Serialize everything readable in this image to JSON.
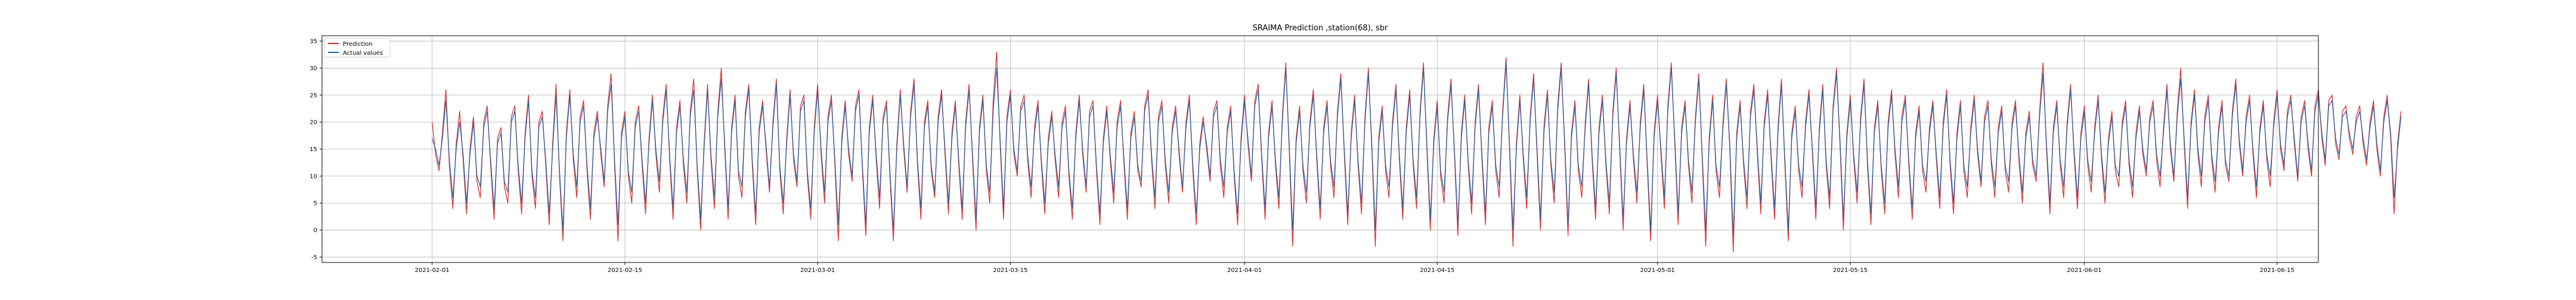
{
  "chart_data": {
    "type": "line",
    "title": "SRAIMA Prediction ,station(68), sbr",
    "xlabel": "",
    "ylabel": "",
    "xlim": [
      "2021-01-24",
      "2021-06-18"
    ],
    "ylim": [
      -6,
      36
    ],
    "x_ticks": [
      "2021-02-01",
      "2021-02-15",
      "2021-03-01",
      "2021-03-15",
      "2021-04-01",
      "2021-04-15",
      "2021-05-01",
      "2021-05-15",
      "2021-06-01",
      "2021-06-15"
    ],
    "y_ticks": [
      -5,
      0,
      5,
      10,
      15,
      20,
      25,
      30,
      35
    ],
    "grid": true,
    "legend_position": "top-left",
    "x_start": "2021-02-01T00:00",
    "x_step_hours": 6,
    "series": [
      {
        "name": "Prediction",
        "color": "#d62728",
        "values": [
          20,
          14,
          11,
          18,
          26,
          12,
          4,
          16,
          22,
          13,
          3,
          15,
          21,
          9,
          6,
          20,
          23,
          12,
          2,
          17,
          19,
          8,
          5,
          21,
          23,
          11,
          3,
          18,
          25,
          10,
          4,
          20,
          22,
          12,
          1,
          16,
          27,
          10,
          -2,
          18,
          26,
          13,
          6,
          21,
          24,
          11,
          2,
          18,
          22,
          14,
          8,
          23,
          29,
          12,
          -2,
          18,
          22,
          10,
          5,
          20,
          23,
          12,
          3,
          17,
          25,
          14,
          7,
          21,
          27,
          13,
          2,
          19,
          24,
          12,
          5,
          22,
          28,
          11,
          0,
          16,
          27,
          13,
          4,
          22,
          30,
          15,
          2,
          19,
          25,
          10,
          6,
          22,
          27,
          12,
          1,
          19,
          24,
          15,
          7,
          20,
          28,
          11,
          3,
          17,
          26,
          13,
          8,
          23,
          25,
          10,
          2,
          19,
          27,
          14,
          5,
          21,
          25,
          12,
          -2,
          17,
          24,
          14,
          9,
          23,
          26,
          11,
          -1,
          19,
          25,
          13,
          4,
          21,
          24,
          10,
          -2,
          16,
          26,
          15,
          7,
          22,
          28,
          12,
          2,
          20,
          24,
          11,
          6,
          21,
          26,
          14,
          3,
          18,
          24,
          12,
          2,
          20,
          27,
          13,
          0,
          19,
          25,
          11,
          5,
          24,
          33,
          16,
          2,
          21,
          26,
          14,
          10,
          23,
          25,
          13,
          6,
          19,
          24,
          12,
          3,
          17,
          22,
          13,
          6,
          20,
          23,
          10,
          2,
          18,
          25,
          14,
          7,
          22,
          24,
          11,
          1,
          17,
          23,
          13,
          5,
          20,
          24,
          12,
          2,
          18,
          22,
          11,
          8,
          23,
          26,
          13,
          4,
          21,
          24,
          12,
          5,
          19,
          23,
          14,
          7,
          20,
          25,
          11,
          1,
          16,
          21,
          15,
          9,
          22,
          24,
          12,
          6,
          19,
          23,
          10,
          1,
          17,
          25,
          16,
          9,
          24,
          27,
          13,
          2,
          18,
          24,
          12,
          4,
          21,
          31,
          15,
          -3,
          17,
          23,
          11,
          5,
          20,
          26,
          13,
          2,
          19,
          24,
          12,
          6,
          22,
          29,
          14,
          1,
          18,
          25,
          12,
          3,
          21,
          30,
          15,
          -3,
          17,
          23,
          11,
          6,
          20,
          27,
          13,
          2,
          19,
          26,
          12,
          4,
          22,
          31,
          15,
          0,
          17,
          24,
          10,
          5,
          21,
          28,
          14,
          -1,
          18,
          25,
          12,
          3,
          20,
          27,
          13,
          1,
          19,
          24,
          11,
          6,
          22,
          32,
          15,
          -3,
          16,
          25,
          13,
          4,
          21,
          29,
          14,
          0,
          19,
          26,
          12,
          5,
          23,
          31,
          16,
          -1,
          18,
          24,
          11,
          6,
          20,
          28,
          13,
          2,
          19,
          25,
          12,
          3,
          22,
          30,
          15,
          0,
          17,
          24,
          13,
          5,
          20,
          27,
          12,
          -2,
          18,
          25,
          14,
          4,
          23,
          31,
          16,
          1,
          19,
          24,
          12,
          5,
          21,
          29,
          13,
          -3,
          17,
          25,
          11,
          6,
          20,
          28,
          15,
          -4,
          18,
          24,
          12,
          4,
          22,
          27,
          14,
          3,
          20,
          26,
          13,
          2,
          19,
          28,
          12,
          -2,
          18,
          23,
          11,
          6,
          20,
          26,
          14,
          2,
          19,
          27,
          12,
          4,
          23,
          30,
          16,
          0,
          18,
          25,
          13,
          5,
          21,
          28,
          12,
          1,
          19,
          24,
          11,
          3,
          20,
          26,
          14,
          6,
          21,
          25,
          12,
          2,
          18,
          23,
          11,
          7,
          19,
          24,
          13,
          4,
          20,
          26,
          12,
          3,
          18,
          24,
          11,
          6,
          19,
          25,
          14,
          8,
          21,
          24,
          12,
          6,
          19,
          23,
          11,
          7,
          20,
          24,
          13,
          5,
          18,
          22,
          12,
          9,
          22,
          31,
          15,
          3,
          19,
          24,
          12,
          6,
          20,
          27,
          14,
          4,
          18,
          23,
          12,
          7,
          19,
          25,
          13,
          5,
          17,
          22,
          11,
          8,
          20,
          24,
          12,
          6,
          18,
          23,
          14,
          10,
          21,
          24,
          13,
          8,
          19,
          27,
          15,
          9,
          22,
          30,
          16,
          4,
          20,
          26,
          14,
          8,
          21,
          25,
          13,
          7,
          19,
          24,
          12,
          9,
          22,
          28,
          16,
          10,
          21,
          25,
          14,
          6,
          19,
          24,
          13,
          8,
          20,
          26,
          15,
          11,
          22,
          25,
          16,
          9,
          21,
          24,
          15,
          10,
          23,
          26,
          17,
          12,
          24,
          25,
          16,
          13,
          22,
          23,
          17,
          14,
          21,
          23,
          16,
          12,
          20,
          24,
          15,
          10,
          21,
          25,
          17,
          3,
          16,
          22
        ]
      },
      {
        "name": "Actual values",
        "color": "#1f5fa5",
        "values": [
          17,
          15,
          12,
          17,
          24,
          13,
          6,
          15,
          20,
          14,
          5,
          14,
          20,
          10,
          8,
          19,
          22,
          13,
          4,
          16,
          18,
          9,
          7,
          20,
          22,
          12,
          5,
          17,
          24,
          11,
          6,
          19,
          21,
          13,
          3,
          15,
          25,
          11,
          0,
          17,
          25,
          14,
          8,
          20,
          23,
          12,
          4,
          17,
          21,
          15,
          9,
          22,
          27,
          13,
          1,
          17,
          21,
          11,
          7,
          19,
          22,
          13,
          5,
          16,
          24,
          15,
          9,
          20,
          26,
          14,
          4,
          18,
          23,
          13,
          7,
          21,
          26,
          12,
          2,
          15,
          26,
          14,
          6,
          21,
          28,
          16,
          4,
          18,
          24,
          11,
          8,
          21,
          26,
          13,
          3,
          18,
          23,
          16,
          8,
          19,
          27,
          12,
          5,
          16,
          25,
          14,
          9,
          22,
          24,
          11,
          4,
          18,
          26,
          15,
          7,
          20,
          24,
          13,
          1,
          16,
          23,
          15,
          10,
          22,
          25,
          12,
          1,
          18,
          24,
          14,
          6,
          20,
          23,
          11,
          0,
          15,
          25,
          16,
          8,
          21,
          27,
          13,
          4,
          19,
          23,
          12,
          7,
          20,
          25,
          15,
          5,
          17,
          23,
          13,
          4,
          19,
          26,
          14,
          2,
          18,
          24,
          12,
          7,
          22,
          30,
          17,
          4,
          20,
          25,
          15,
          11,
          22,
          24,
          14,
          8,
          18,
          23,
          13,
          5,
          16,
          21,
          14,
          8,
          19,
          22,
          11,
          4,
          17,
          24,
          15,
          8,
          21,
          23,
          12,
          3,
          16,
          22,
          14,
          7,
          19,
          23,
          13,
          4,
          17,
          21,
          12,
          9,
          22,
          25,
          14,
          6,
          20,
          23,
          13,
          7,
          18,
          22,
          15,
          8,
          19,
          24,
          12,
          3,
          15,
          20,
          16,
          10,
          21,
          23,
          13,
          8,
          18,
          22,
          11,
          3,
          16,
          24,
          17,
          10,
          23,
          26,
          14,
          4,
          17,
          23,
          13,
          6,
          20,
          30,
          16,
          0,
          16,
          22,
          12,
          7,
          19,
          25,
          14,
          4,
          18,
          23,
          13,
          8,
          21,
          28,
          15,
          3,
          17,
          24,
          13,
          5,
          20,
          29,
          16,
          0,
          16,
          22,
          12,
          8,
          19,
          26,
          14,
          4,
          18,
          25,
          13,
          6,
          21,
          30,
          16,
          2,
          16,
          23,
          11,
          7,
          20,
          27,
          15,
          1,
          17,
          24,
          13,
          5,
          19,
          26,
          14,
          3,
          18,
          23,
          12,
          8,
          21,
          31,
          16,
          0,
          15,
          24,
          14,
          6,
          20,
          28,
          15,
          2,
          18,
          25,
          13,
          7,
          22,
          30,
          17,
          1,
          17,
          23,
          12,
          8,
          19,
          27,
          14,
          4,
          18,
          24,
          13,
          5,
          21,
          29,
          16,
          2,
          16,
          23,
          14,
          7,
          19,
          26,
          13,
          0,
          17,
          24,
          15,
          6,
          22,
          30,
          17,
          3,
          18,
          23,
          13,
          7,
          20,
          28,
          14,
          0,
          16,
          24,
          12,
          8,
          19,
          27,
          16,
          -1,
          17,
          23,
          13,
          6,
          21,
          26,
          15,
          5,
          19,
          25,
          14,
          4,
          18,
          27,
          13,
          0,
          17,
          22,
          12,
          8,
          19,
          25,
          15,
          4,
          18,
          26,
          13,
          6,
          22,
          29,
          17,
          2,
          17,
          24,
          14,
          7,
          20,
          27,
          13,
          3,
          18,
          23,
          12,
          5,
          19,
          25,
          15,
          8,
          20,
          24,
          13,
          4,
          17,
          22,
          12,
          9,
          18,
          23,
          14,
          6,
          19,
          25,
          13,
          5,
          17,
          23,
          12,
          8,
          18,
          24,
          15,
          9,
          20,
          23,
          13,
          8,
          18,
          22,
          12,
          9,
          19,
          23,
          14,
          7,
          17,
          21,
          13,
          10,
          21,
          29,
          16,
          5,
          18,
          23,
          13,
          8,
          19,
          26,
          15,
          6,
          17,
          22,
          13,
          9,
          18,
          24,
          14,
          7,
          16,
          21,
          12,
          10,
          19,
          23,
          13,
          8,
          17,
          22,
          15,
          11,
          20,
          23,
          14,
          10,
          18,
          26,
          16,
          10,
          21,
          28,
          17,
          6,
          19,
          25,
          15,
          10,
          20,
          24,
          14,
          9,
          18,
          23,
          13,
          10,
          21,
          27,
          17,
          11,
          20,
          24,
          15,
          8,
          18,
          23,
          14,
          10,
          19,
          25,
          16,
          12,
          21,
          24,
          17,
          10,
          20,
          23,
          16,
          11,
          22,
          25,
          18,
          13,
          23,
          24,
          17,
          14,
          21,
          22,
          18,
          15,
          20,
          22,
          17,
          13,
          19,
          23,
          16,
          11,
          20,
          24,
          18,
          6,
          15,
          21
        ]
      }
    ]
  }
}
